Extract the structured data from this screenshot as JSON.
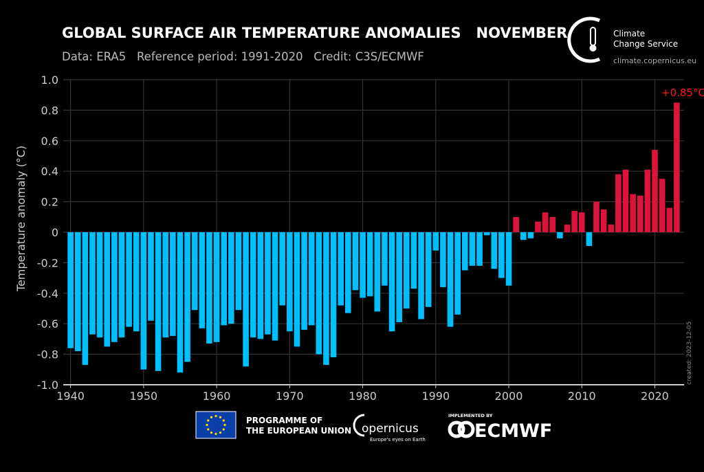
{
  "header": {
    "title": "GLOBAL SURFACE AIR TEMPERATURE ANOMALIES   NOVEMBER",
    "subtitle": "Data: ERA5   Reference period: 1991-2020   Credit: C3S/ECMWF"
  },
  "brand": {
    "name_line1": "Climate",
    "name_line2": "Change Service",
    "url": "climate.copernicus.eu"
  },
  "footer": {
    "eu_line1": "PROGRAMME OF",
    "eu_line2": "THE EUROPEAN UNION",
    "copernicus": "opernicus",
    "copernicus_tagline": "Europe's eyes on Earth",
    "implemented_by": "IMPLEMENTED BY",
    "ecmwf": "ECMWF"
  },
  "created": "created: 2023-12-05",
  "chart_data": {
    "type": "bar",
    "title": "GLOBAL SURFACE AIR TEMPERATURE ANOMALIES   NOVEMBER",
    "xlabel": "",
    "ylabel": "Temperature anomaly (°C)",
    "ylim": [
      -1.0,
      1.0
    ],
    "xlim": [
      1939,
      2024
    ],
    "yticks": [
      "1.0",
      "0.8",
      "0.6",
      "0.4",
      "0.2",
      "0",
      "-0.2",
      "-0.4",
      "-0.6",
      "-0.8",
      "-1.0"
    ],
    "xticks": [
      "1940",
      "1950",
      "1960",
      "1970",
      "1980",
      "1990",
      "2000",
      "2010",
      "2020"
    ],
    "grid": true,
    "colors": {
      "positive": "#dc143c",
      "negative": "#00bfff"
    },
    "annotation": "+0.85°C",
    "x": [
      1940,
      1941,
      1942,
      1943,
      1944,
      1945,
      1946,
      1947,
      1948,
      1949,
      1950,
      1951,
      1952,
      1953,
      1954,
      1955,
      1956,
      1957,
      1958,
      1959,
      1960,
      1961,
      1962,
      1963,
      1964,
      1965,
      1966,
      1967,
      1968,
      1969,
      1970,
      1971,
      1972,
      1973,
      1974,
      1975,
      1976,
      1977,
      1978,
      1979,
      1980,
      1981,
      1982,
      1983,
      1984,
      1985,
      1986,
      1987,
      1988,
      1989,
      1990,
      1991,
      1992,
      1993,
      1994,
      1995,
      1996,
      1997,
      1998,
      1999,
      2000,
      2001,
      2002,
      2003,
      2004,
      2005,
      2006,
      2007,
      2008,
      2009,
      2010,
      2011,
      2012,
      2013,
      2014,
      2015,
      2016,
      2017,
      2018,
      2019,
      2020,
      2021,
      2022,
      2023
    ],
    "values": [
      -0.76,
      -0.78,
      -0.87,
      -0.67,
      -0.69,
      -0.75,
      -0.72,
      -0.69,
      -0.62,
      -0.65,
      -0.9,
      -0.58,
      -0.91,
      -0.69,
      -0.68,
      -0.92,
      -0.85,
      -0.51,
      -0.63,
      -0.73,
      -0.72,
      -0.61,
      -0.6,
      -0.51,
      -0.88,
      -0.69,
      -0.7,
      -0.67,
      -0.71,
      -0.48,
      -0.65,
      -0.75,
      -0.64,
      -0.61,
      -0.8,
      -0.87,
      -0.82,
      -0.48,
      -0.53,
      -0.38,
      -0.43,
      -0.42,
      -0.52,
      -0.35,
      -0.65,
      -0.59,
      -0.5,
      -0.37,
      -0.57,
      -0.49,
      -0.12,
      -0.36,
      -0.62,
      -0.54,
      -0.25,
      -0.22,
      -0.22,
      -0.02,
      -0.24,
      -0.3,
      -0.35,
      0.1,
      -0.05,
      -0.04,
      0.07,
      0.13,
      0.1,
      -0.04,
      0.05,
      0.14,
      0.13,
      -0.09,
      0.2,
      0.15,
      0.05,
      0.38,
      0.41,
      0.25,
      0.24,
      0.41,
      0.54,
      0.35,
      0.16,
      0.85
    ]
  }
}
